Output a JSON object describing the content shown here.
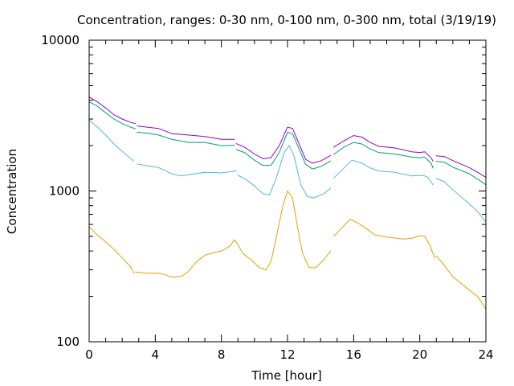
{
  "chart_data": {
    "type": "line",
    "title": "Concentration, ranges: 0-30 nm, 0-100 nm, 0-300 nm, total (3/19/19)",
    "xlabel": "Time [hour]",
    "ylabel": "Concentration",
    "xlim": [
      0,
      24
    ],
    "ylim": [
      100,
      10000
    ],
    "yscale": "log",
    "grid": false,
    "legend": "none",
    "x_ticks": [
      0,
      4,
      8,
      12,
      16,
      20,
      24
    ],
    "y_ticks": [
      100,
      1000,
      10000
    ],
    "x_tick_labels": [
      "0",
      "4",
      "8",
      "12",
      "16",
      "20",
      "24"
    ],
    "y_tick_labels": [
      "100",
      "1000",
      "10000"
    ],
    "series": [
      {
        "color": "#e69f00",
        "segments": [
          [
            [
              0,
              580
            ],
            [
              0.5,
              510
            ],
            [
              1,
              460
            ],
            [
              1.5,
              410
            ],
            [
              2,
              360
            ],
            [
              2.5,
              315
            ],
            [
              2.7,
              285
            ]
          ],
          [
            [
              2.8,
              290
            ],
            [
              3.5,
              285
            ],
            [
              4.2,
              285
            ],
            [
              4.6,
              278
            ],
            [
              5.0,
              268
            ],
            [
              5.6,
              272
            ],
            [
              6,
              292
            ],
            [
              6.5,
              340
            ],
            [
              7,
              375
            ],
            [
              7.5,
              390
            ],
            [
              8,
              400
            ],
            [
              8.5,
              430
            ],
            [
              8.8,
              475
            ],
            [
              9.0,
              440
            ],
            [
              9.3,
              385
            ],
            [
              9.8,
              350
            ],
            [
              10.3,
              310
            ],
            [
              10.7,
              300
            ],
            [
              11.0,
              340
            ],
            [
              11.3,
              480
            ],
            [
              11.7,
              780
            ],
            [
              12.0,
              1000
            ],
            [
              12.3,
              900
            ],
            [
              12.6,
              580
            ],
            [
              12.9,
              390
            ],
            [
              13.3,
              310
            ],
            [
              13.7,
              310
            ],
            [
              14.2,
              350
            ],
            [
              14.6,
              400
            ]
          ],
          [
            [
              14.8,
              500
            ],
            [
              15.3,
              570
            ],
            [
              15.8,
              650
            ],
            [
              16.3,
              610
            ],
            [
              16.8,
              560
            ],
            [
              17.3,
              510
            ],
            [
              18,
              495
            ],
            [
              19,
              480
            ],
            [
              19.5,
              485
            ],
            [
              20,
              505
            ],
            [
              20.3,
              500
            ],
            [
              20.6,
              440
            ],
            [
              20.9,
              360
            ]
          ],
          [
            [
              21.0,
              370
            ],
            [
              21.4,
              330
            ],
            [
              22,
              270
            ],
            [
              23,
              220
            ],
            [
              23.5,
              200
            ],
            [
              24,
              165
            ]
          ]
        ]
      },
      {
        "color": "#56b4e9",
        "segments": [
          [
            [
              0,
              2950
            ],
            [
              0.5,
              2650
            ],
            [
              1,
              2350
            ],
            [
              1.5,
              2050
            ],
            [
              2,
              1830
            ],
            [
              2.5,
              1650
            ],
            [
              2.7,
              1580
            ]
          ],
          [
            [
              2.9,
              1510
            ],
            [
              3.5,
              1470
            ],
            [
              4.2,
              1430
            ],
            [
              5,
              1300
            ],
            [
              5.5,
              1260
            ],
            [
              6,
              1280
            ],
            [
              7,
              1330
            ],
            [
              8,
              1320
            ],
            [
              8.7,
              1350
            ],
            [
              8.9,
              1370
            ]
          ],
          [
            [
              9.0,
              1270
            ],
            [
              9.5,
              1190
            ],
            [
              10,
              1080
            ],
            [
              10.5,
              960
            ],
            [
              10.9,
              940
            ],
            [
              11.3,
              1200
            ],
            [
              11.8,
              1800
            ],
            [
              12.1,
              2000
            ],
            [
              12.4,
              1700
            ],
            [
              12.8,
              1100
            ],
            [
              13.2,
              920
            ],
            [
              13.6,
              900
            ],
            [
              14.2,
              960
            ],
            [
              14.6,
              1040
            ]
          ],
          [
            [
              14.8,
              1220
            ],
            [
              15.3,
              1380
            ],
            [
              15.9,
              1600
            ],
            [
              16.5,
              1530
            ],
            [
              17,
              1420
            ],
            [
              17.5,
              1360
            ],
            [
              18.5,
              1330
            ],
            [
              19.5,
              1260
            ],
            [
              20.2,
              1270
            ],
            [
              20.5,
              1230
            ],
            [
              20.8,
              1100
            ]
          ],
          [
            [
              21.0,
              1210
            ],
            [
              21.5,
              1150
            ],
            [
              22,
              1020
            ],
            [
              23,
              820
            ],
            [
              23.5,
              730
            ],
            [
              24,
              620
            ]
          ]
        ]
      },
      {
        "color": "#009e73",
        "segments": [
          [
            [
              0,
              3900
            ],
            [
              0.5,
              3650
            ],
            [
              1,
              3300
            ],
            [
              1.5,
              3000
            ],
            [
              2,
              2800
            ],
            [
              2.5,
              2650
            ],
            [
              2.8,
              2590
            ]
          ],
          [
            [
              2.9,
              2450
            ],
            [
              3.5,
              2420
            ],
            [
              4.2,
              2350
            ],
            [
              5,
              2200
            ],
            [
              6,
              2100
            ],
            [
              7,
              2100
            ],
            [
              8,
              2000
            ],
            [
              8.8,
              2010
            ]
          ],
          [
            [
              8.9,
              1880
            ],
            [
              9.4,
              1800
            ],
            [
              10,
              1600
            ],
            [
              10.5,
              1480
            ],
            [
              11.0,
              1480
            ],
            [
              11.5,
              1800
            ],
            [
              12.0,
              2450
            ],
            [
              12.3,
              2400
            ],
            [
              12.7,
              1900
            ],
            [
              13.1,
              1500
            ],
            [
              13.5,
              1400
            ],
            [
              14.0,
              1450
            ],
            [
              14.6,
              1580
            ]
          ],
          [
            [
              14.8,
              1750
            ],
            [
              15.4,
              1950
            ],
            [
              16,
              2100
            ],
            [
              16.5,
              2050
            ],
            [
              17,
              1900
            ],
            [
              17.5,
              1800
            ],
            [
              18.5,
              1760
            ],
            [
              19.5,
              1680
            ],
            [
              20,
              1660
            ],
            [
              20.3,
              1680
            ],
            [
              20.7,
              1520
            ],
            [
              20.8,
              1420
            ]
          ],
          [
            [
              21.0,
              1570
            ],
            [
              21.5,
              1550
            ],
            [
              22,
              1440
            ],
            [
              23,
              1300
            ],
            [
              23.5,
              1200
            ],
            [
              24,
              1100
            ]
          ]
        ]
      },
      {
        "color": "#9400d3",
        "segments": [
          [
            [
              0,
              4200
            ],
            [
              0.5,
              3900
            ],
            [
              1,
              3550
            ],
            [
              1.5,
              3200
            ],
            [
              2,
              3000
            ],
            [
              2.5,
              2850
            ],
            [
              2.8,
              2800
            ]
          ],
          [
            [
              2.9,
              2700
            ],
            [
              3.5,
              2650
            ],
            [
              4.2,
              2600
            ],
            [
              5,
              2400
            ],
            [
              6,
              2350
            ],
            [
              7,
              2300
            ],
            [
              8,
              2200
            ],
            [
              8.8,
              2200
            ]
          ],
          [
            [
              8.9,
              2060
            ],
            [
              9.4,
              1950
            ],
            [
              10,
              1760
            ],
            [
              10.5,
              1640
            ],
            [
              11.0,
              1660
            ],
            [
              11.5,
              2000
            ],
            [
              12.0,
              2650
            ],
            [
              12.3,
              2600
            ],
            [
              12.7,
              2050
            ],
            [
              13.1,
              1620
            ],
            [
              13.5,
              1530
            ],
            [
              14.0,
              1580
            ],
            [
              14.6,
              1720
            ]
          ],
          [
            [
              14.8,
              1950
            ],
            [
              15.4,
              2150
            ],
            [
              16,
              2330
            ],
            [
              16.5,
              2280
            ],
            [
              17,
              2100
            ],
            [
              17.5,
              1980
            ],
            [
              18.5,
              1930
            ],
            [
              19.5,
              1820
            ],
            [
              20,
              1800
            ],
            [
              20.3,
              1820
            ],
            [
              20.7,
              1650
            ],
            [
              20.8,
              1580
            ]
          ],
          [
            [
              21.0,
              1710
            ],
            [
              21.5,
              1690
            ],
            [
              22,
              1590
            ],
            [
              23,
              1430
            ],
            [
              23.5,
              1330
            ],
            [
              24,
              1230
            ]
          ]
        ]
      }
    ]
  }
}
